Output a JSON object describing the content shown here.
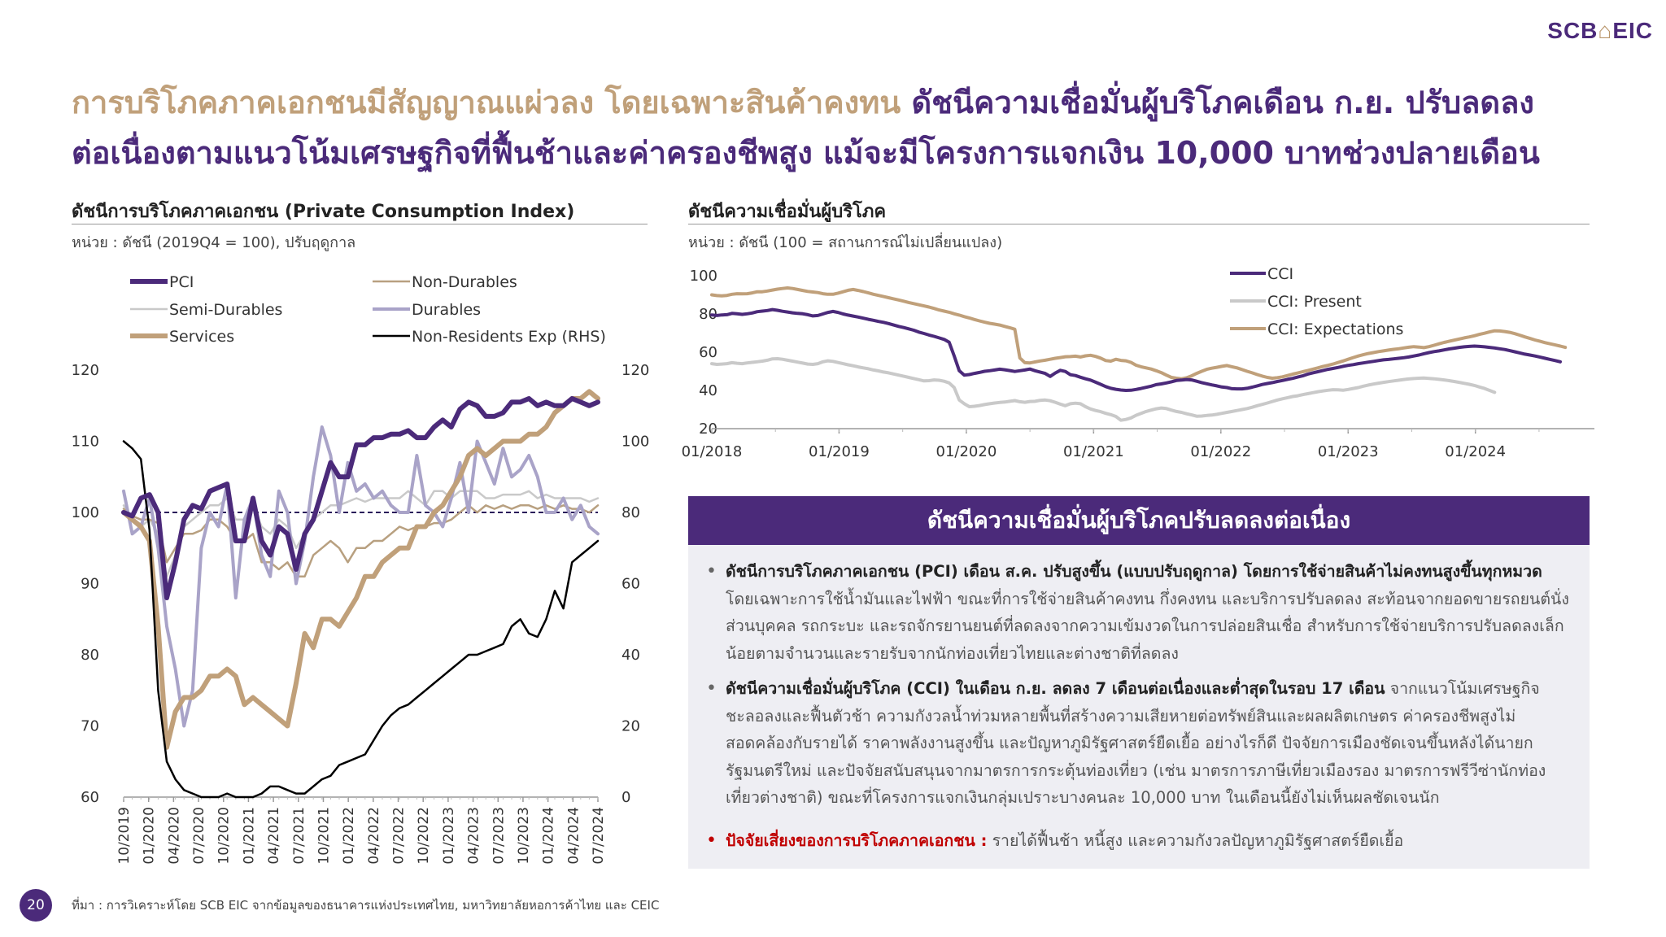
{
  "logo": {
    "text_left": "SCB",
    "icon": "house-icon",
    "text_right": "EIC"
  },
  "title": {
    "part1": "การบริโภคภาคเอกชนมีสัญญาณแผ่วลง โดยเฉพาะสินค้าคงทน",
    "part2": "ดัชนีความเชื่อมั่นผู้บริโภคเดือน ก.ย. ปรับลดลง",
    "part3": "ต่อเนื่องตามแนวโน้มเศรษฐกิจที่ฟื้นช้าและค่าครองชีพสูง แม้จะมีโครงการแจกเงิน 10,000 บาทช่วงปลายเดือน"
  },
  "colors": {
    "purple": "#4b2a7a",
    "gold": "#c0a07a",
    "lilac": "#a9a3c8",
    "gray": "#c9c9c9",
    "tan": "#b8a080",
    "black": "#000000"
  },
  "pci_chart": {
    "title": "ดัชนีการบริโภคภาคเอกชน (Private Consumption Index)",
    "unit": "หน่วย : ดัชนี (2019Q4 = 100), ปรับฤดูกาล"
  },
  "cci_chart": {
    "title": "ดัชนีความเชื่อมั่นผู้บริโภค",
    "unit": "หน่วย : ดัชนี (100 = สถานการณ์ไม่เปลี่ยนแปลง)"
  },
  "chart_data": [
    {
      "type": "line",
      "title": "ดัชนีการบริโภคภาคเอกชน (Private Consumption Index)",
      "ylim": [
        60,
        120
      ],
      "y2lim": [
        0,
        120
      ],
      "yticks": [
        "120",
        "110",
        "100",
        "90",
        "80",
        "70",
        "60"
      ],
      "y2ticks": [
        "120",
        "100",
        "80",
        "60",
        "40",
        "20",
        "0"
      ],
      "reference_line": 100,
      "legend": "top",
      "x_ticks": [
        "10/2019",
        "01/2020",
        "04/2020",
        "07/2020",
        "10/2020",
        "01/2021",
        "04/2021",
        "07/2021",
        "10/2021",
        "01/2022",
        "04/2022",
        "07/2022",
        "10/2022",
        "01/2023",
        "04/2023",
        "07/2023",
        "10/2023",
        "01/2024",
        "04/2024",
        "07/2024"
      ],
      "series": [
        {
          "name": "PCI",
          "color": "#4b2a7a",
          "width": 6,
          "axis": "left",
          "values": [
            100,
            99.5,
            102,
            102.5,
            100,
            88,
            93,
            99,
            101,
            100.5,
            103,
            103.5,
            104,
            96,
            96,
            102,
            96,
            94,
            98,
            97,
            92,
            97,
            99,
            103,
            107,
            105,
            105,
            109.5,
            109.5,
            110.5,
            110.5,
            111,
            111,
            111.5,
            110.5,
            110.5,
            112,
            113,
            112,
            114.5,
            115.5,
            115,
            113.5,
            113.5,
            114,
            115.5,
            115.5,
            116,
            115,
            115.5,
            115,
            115,
            116,
            115.5,
            115,
            115.5
          ]
        },
        {
          "name": "Non-Durables",
          "color": "#b8a080",
          "width": 2.5,
          "axis": "left",
          "values": [
            100.5,
            99.5,
            99,
            99,
            98.5,
            93,
            95,
            97,
            97,
            97.5,
            99,
            99,
            98,
            96,
            96,
            97,
            93,
            93,
            92,
            93,
            91,
            91,
            94,
            95,
            96,
            95,
            93,
            95,
            95,
            96,
            96,
            97,
            98,
            97.5,
            98,
            98,
            98.5,
            98.5,
            99,
            100,
            101,
            100,
            101,
            100.5,
            101,
            100.5,
            101,
            101,
            100.5,
            101,
            100.5,
            101,
            100.5,
            100.5,
            100,
            101
          ]
        },
        {
          "name": "Semi-Durables",
          "color": "#c9c9c9",
          "width": 2.5,
          "axis": "left",
          "values": [
            101,
            99,
            98,
            99,
            97,
            91,
            94,
            98,
            99,
            100,
            101,
            101,
            102,
            99,
            99,
            101,
            98,
            97,
            99,
            98,
            95,
            97,
            99,
            100,
            101,
            101,
            101.5,
            102,
            101.5,
            102,
            102,
            102,
            102,
            103,
            102,
            101,
            103,
            103,
            102,
            103,
            103,
            103,
            102,
            102,
            102.5,
            102.5,
            102.5,
            103,
            102,
            102.5,
            102,
            102,
            102,
            102,
            101.5,
            102
          ]
        },
        {
          "name": "Durables",
          "color": "#a9a3c8",
          "width": 4,
          "axis": "left",
          "values": [
            103,
            97,
            98,
            102,
            95,
            84,
            78,
            70,
            75,
            95,
            100,
            98,
            104,
            88,
            99,
            102,
            94,
            91,
            103,
            100,
            90,
            96,
            105,
            112,
            108,
            100,
            107,
            103,
            104,
            102,
            103,
            101,
            100,
            100,
            108,
            101,
            100,
            98,
            102,
            107,
            100,
            110,
            107,
            104,
            109,
            105,
            106,
            108,
            105,
            100,
            100,
            102,
            99,
            101,
            98,
            97
          ]
        },
        {
          "name": "Services",
          "color": "#c0a07a",
          "width": 6,
          "axis": "left",
          "values": [
            100,
            99,
            98,
            96,
            84,
            67,
            72,
            74,
            74,
            75,
            77,
            77,
            78,
            77,
            73,
            74,
            73,
            72,
            71,
            70,
            76,
            83,
            81,
            85,
            85,
            84,
            86,
            88,
            91,
            91,
            93,
            94,
            95,
            95,
            98,
            98,
            100,
            101,
            103,
            105,
            108,
            109,
            108,
            109,
            110,
            110,
            110,
            111,
            111,
            112,
            114,
            115,
            116,
            116,
            117,
            116
          ]
        },
        {
          "name": "Non-Residents Exp (RHS)",
          "color": "#000000",
          "width": 2.5,
          "axis": "right",
          "values": [
            100,
            98,
            95,
            75,
            30,
            10,
            5,
            2,
            1,
            0,
            0,
            0,
            1,
            0,
            0,
            0,
            1,
            3,
            3,
            2,
            1,
            1,
            3,
            5,
            6,
            9,
            10,
            11,
            12,
            16,
            20,
            23,
            25,
            26,
            28,
            30,
            32,
            34,
            36,
            38,
            40,
            40,
            41,
            42,
            43,
            48,
            50,
            46,
            45,
            50,
            58,
            53,
            66,
            68,
            70,
            72
          ]
        }
      ]
    },
    {
      "type": "line",
      "title": "ดัชนีความเชื่อมั่นผู้บริโภค",
      "ylim": [
        20,
        100
      ],
      "yticks": [
        "100",
        "80",
        "60",
        "40",
        "20"
      ],
      "legend": "top-right",
      "x_ticks": [
        "01/2018",
        "01/2019",
        "01/2020",
        "01/2021",
        "01/2022",
        "01/2023",
        "01/2024"
      ],
      "x_start": "01/2018",
      "x_end": "09/2024",
      "series": [
        {
          "name": "CCI",
          "color": "#4b2a7a",
          "width": 4,
          "values": [
            79.5,
            79.2,
            79.5,
            79.6,
            80.3,
            80.1,
            79.8,
            80.1,
            80.5,
            81.2,
            81.5,
            81.8,
            82.3,
            81.9,
            81.4,
            81,
            80.6,
            80.3,
            80.1,
            79.6,
            79,
            79.2,
            80,
            80.8,
            81.3,
            80.8,
            80,
            79.4,
            78.9,
            78.4,
            77.8,
            77.2,
            76.7,
            76.1,
            75.6,
            75,
            74.2,
            73.5,
            72.9,
            72.2,
            71.5,
            70.5,
            69.8,
            69,
            68.3,
            67.5,
            66.7,
            65.2,
            58,
            50.3,
            48,
            48.3,
            48.9,
            49.4,
            50,
            50.3,
            50.7,
            51.1,
            50.8,
            50.4,
            49.9,
            50.3,
            50.7,
            51.2,
            50.3,
            49.6,
            48.9,
            47.3,
            49.1,
            50.5,
            49.9,
            48.2,
            47.8,
            46.9,
            46.1,
            45.4,
            44.3,
            43.2,
            42,
            41.1,
            40.6,
            40.2,
            40,
            40.1,
            40.5,
            41,
            41.6,
            42.2,
            43,
            43.4,
            43.9,
            44.5,
            45.2,
            45.4,
            45.7,
            45.5,
            44.8,
            44.1,
            43.5,
            42.9,
            42.4,
            41.8,
            41.5,
            40.9,
            40.8,
            40.8,
            41.1,
            41.7,
            42.4,
            43.1,
            43.6,
            44.1,
            44.7,
            45.2,
            45.8,
            46.3,
            47,
            47.6,
            48.5,
            49.2,
            49.8,
            50.4,
            51,
            51.5,
            52,
            52.6,
            53.1,
            53.5,
            54,
            54.4,
            54.8,
            55.2,
            55.6,
            56,
            56.2,
            56.5,
            56.8,
            57.1,
            57.5,
            58,
            58.5,
            59.2,
            59.8,
            60.3,
            60.7,
            61.2,
            61.7,
            62.1,
            62.5,
            62.8,
            63,
            63.2,
            63,
            62.8,
            62.5,
            62.2,
            61.8,
            61.4,
            60.8,
            60.2,
            59.6,
            59,
            58.5,
            58,
            57.4,
            56.8,
            56.2,
            55.6,
            55
          ]
        },
        {
          "name": "CCI: Present",
          "color": "#c9c9c9",
          "width": 4,
          "values": [
            54,
            53.6,
            53.8,
            54,
            54.5,
            54.2,
            54,
            54.4,
            54.7,
            55,
            55.3,
            55.8,
            56.5,
            56.6,
            56.3,
            55.8,
            55.3,
            54.8,
            54.3,
            53.8,
            53.6,
            54,
            55,
            55.5,
            55.2,
            54.6,
            54,
            53.4,
            52.9,
            52.3,
            51.8,
            51.3,
            50.7,
            50.2,
            49.6,
            49.2,
            48.6,
            48,
            47.4,
            46.8,
            46.2,
            45.6,
            45,
            45.1,
            45.5,
            45.3,
            44.8,
            43.9,
            41.5,
            35,
            33,
            31.5,
            31.7,
            32.1,
            32.6,
            33,
            33.4,
            33.7,
            33.9,
            34.3,
            34.7,
            34.1,
            33.8,
            34.2,
            34.3,
            34.8,
            35,
            34.6,
            33.8,
            32.8,
            32,
            33,
            33.3,
            33,
            31.5,
            30.3,
            29.5,
            28.9,
            28,
            27.3,
            26.4,
            24.4,
            24.8,
            25.6,
            27,
            28,
            29,
            29.7,
            30.4,
            30.8,
            30.5,
            29.7,
            29,
            28.5,
            27.8,
            27.2,
            26.5,
            26.6,
            26.9,
            27.1,
            27.5,
            28,
            28.5,
            29,
            29.5,
            30,
            30.5,
            31.2,
            32,
            32.7,
            33.4,
            34.2,
            35,
            35.6,
            36.2,
            36.8,
            37.2,
            37.8,
            38.3,
            38.8,
            39.3,
            39.7,
            40.1,
            40.4,
            40.3,
            40.1,
            40.5,
            41,
            41.5,
            42.2,
            42.8,
            43.3,
            43.8,
            44.2,
            44.6,
            45,
            45.3,
            45.7,
            46,
            46.2,
            46.4,
            46.5,
            46.3,
            46.1,
            45.8,
            45.5,
            45.1,
            44.7,
            44.2,
            43.7,
            43.2,
            42.6,
            41.8,
            41,
            40,
            39
          ]
        },
        {
          "name": "CCI: Expectations",
          "color": "#c0a07a",
          "width": 4,
          "values": [
            90,
            89.6,
            89.5,
            89.7,
            90.3,
            90.6,
            90.5,
            90.6,
            91,
            91.6,
            91.6,
            92,
            92.5,
            93,
            93.3,
            93.6,
            93.3,
            92.8,
            92.3,
            91.8,
            91.5,
            91.2,
            90.6,
            90.3,
            90.3,
            90.9,
            91.6,
            92.4,
            92.8,
            92.3,
            91.7,
            91,
            90.3,
            89.7,
            89.1,
            88.5,
            87.9,
            87.3,
            86.7,
            86,
            85.4,
            84.8,
            84.2,
            83.6,
            82.9,
            82.1,
            81.5,
            80.9,
            80.1,
            79.4,
            78.6,
            77.9,
            77.1,
            76.4,
            75.7,
            75.1,
            74.7,
            74.2,
            73.5,
            72.8,
            72,
            57,
            54.5,
            54.4,
            54.9,
            55.4,
            55.8,
            56.3,
            56.8,
            57.2,
            57.6,
            57.7,
            57.9,
            57.5,
            58.1,
            58.4,
            57.8,
            56.9,
            55.6,
            55.3,
            56.3,
            55.7,
            55.5,
            54.7,
            53.2,
            52.4,
            51.8,
            51.2,
            50.3,
            49.3,
            48,
            46.8,
            46.4,
            46.1,
            46.6,
            47.6,
            48.9,
            50,
            51,
            51.6,
            52.1,
            52.6,
            53,
            52.4,
            51.8,
            50.9,
            50,
            49.2,
            48.3,
            47.5,
            46.8,
            46.4,
            46.7,
            47.1,
            47.8,
            48.5,
            49.1,
            49.8,
            50.4,
            51.1,
            51.8,
            52.5,
            53.1,
            53.8,
            54.6,
            55.4,
            56.3,
            57.2,
            58,
            58.7,
            59.3,
            59.8,
            60.3,
            60.7,
            61.1,
            61.5,
            61.8,
            62.2,
            62.6,
            62.9,
            62.7,
            62.4,
            62.9,
            63.6,
            64.4,
            65.1,
            65.7,
            66.3,
            66.9,
            67.5,
            68,
            68.6,
            69.3,
            69.9,
            70.6,
            71.2,
            71.1,
            70.8,
            70.4,
            69.7,
            68.9,
            68,
            67.2,
            66.4,
            65.7,
            65,
            64.4,
            63.8,
            63.2,
            62.5
          ]
        }
      ]
    }
  ],
  "summary": {
    "header": "ดัชนีความเชื่อมั่นผู้บริโภคปรับลดลงต่อเนื่อง",
    "b1_bold": "ดัชนีการบริโภคภาคเอกชน (PCI) เดือน ส.ค. ปรับสูงขึ้น (แบบปรับฤดูกาล) โดยการใช้จ่ายสินค้าไม่คงทนสูงขึ้นทุกหมวด",
    "b1_text": "โดยเฉพาะการใช้น้ำมันและไฟฟ้า ขณะที่การใช้จ่ายสินค้าคงทน กึ่งคงทน และบริการปรับลดลง สะท้อนจากยอดขายรถยนต์นั่งส่วนบุคคล รถกระบะ และรถจักรยานยนต์ที่ลดลงจากความเข้มงวดในการปล่อยสินเชื่อ สำหรับการใช้จ่ายบริการปรับลดลงเล็กน้อยตามจำนวนและรายรับจากนักท่องเที่ยวไทยและต่างชาติที่ลดลง",
    "b2_bold": "ดัชนีความเชื่อมั่นผู้บริโภค (CCI) ในเดือน ก.ย. ลดลง 7 เดือนต่อเนื่องและต่ำสุดในรอบ 17 เดือน",
    "b2_text": " จากแนวโน้มเศรษฐกิจชะลอลงและฟื้นตัวช้า ความกังวลน้ำท่วมหลายพื้นที่สร้างความเสียหายต่อทรัพย์สินและผลผลิตเกษตร ค่าครองชีพสูงไม่สอดคล้องกับรายได้ ราคาพลังงานสูงขึ้น และปัญหาภูมิรัฐศาสตร์ยืดเยื้อ อย่างไรก็ดี ปัจจัยการเมืองชัดเจนขึ้นหลังได้นายกรัฐมนตรีใหม่ และปัจจัยสนับสนุนจากมาตรการกระตุ้นท่องเที่ยว (เช่น มาตรการภาษีเที่ยวเมืองรอง มาตรการฟรีวีซ่านักท่องเที่ยวต่างชาติ) ขณะที่โครงการแจกเงินกลุ่มเปราะบางคนละ 10,000 บาท ในเดือนนี้ยังไม่เห็นผลชัดเจนนัก",
    "b3_bold": "ปัจจัยเสี่ยงของการบริโภคภาคเอกชน :",
    "b3_text": " รายได้ฟื้นช้า หนี้สูง และความกังวลปัญหาภูมิรัฐศาสตร์ยืดเยื้อ"
  },
  "footer": {
    "page_number": "20",
    "source": "ที่มา : การวิเคราะห์โดย SCB EIC จากข้อมูลของธนาคารแห่งประเทศไทย, มหาวิทยาลัยหอการค้าไทย และ CEIC"
  }
}
